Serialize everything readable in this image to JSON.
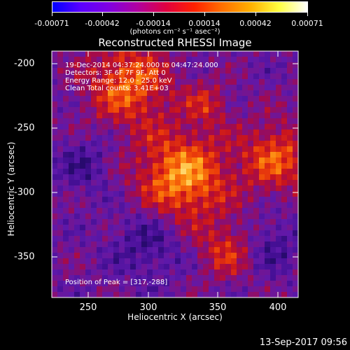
{
  "colorbar": {
    "ticks": [
      "-0.00071",
      "-0.00042",
      "-0.00014",
      "0.00014",
      "0.00042",
      "0.00071"
    ],
    "units": "(photons cm⁻² s⁻¹ asec⁻²)",
    "colors": [
      "#0000ff",
      "#5a00ff",
      "#8000e0",
      "#b000a0",
      "#e00040",
      "#ff2000",
      "#ff7000",
      "#ffb000",
      "#ffff40",
      "#ffffff"
    ]
  },
  "image": {
    "title": "Reconstructed RHESSI Image",
    "annotations": [
      "19-Dec-2014 04:37:24.000 to 04:47:24.000",
      "Detectors: 3F 6F 7F 9F, Att 0",
      "Energy Range: 12.0 - 25.0 keV",
      "Clean     Total counts: 3.41E+03"
    ],
    "peak_label": "Position of Peak = [317,-288]",
    "xlabel": "Heliocentric X (arcsec)",
    "ylabel": "Heliocentric Y (arcsec)",
    "xticks": [
      "250",
      "300",
      "350",
      "400"
    ],
    "yticks": [
      "-200",
      "-250",
      "-300",
      "-350"
    ]
  },
  "footer": "13-Sep-2017 09:56"
}
